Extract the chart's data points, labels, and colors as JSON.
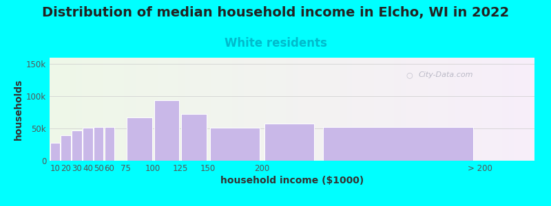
{
  "title": "Distribution of median household income in Elcho, WI in 2022",
  "subtitle": "White residents",
  "xlabel": "household income ($1000)",
  "ylabel": "households",
  "background_color": "#00FFFF",
  "bar_color": "#c9b8e8",
  "bar_edge_color": "#ffffff",
  "bar_centers": [
    10,
    20,
    30,
    40,
    50,
    60,
    87.5,
    112.5,
    137.5,
    175,
    225,
    325
  ],
  "bar_widths": [
    10,
    10,
    10,
    10,
    10,
    10,
    25,
    25,
    25,
    50,
    50,
    150
  ],
  "values": [
    28000,
    40000,
    47000,
    51000,
    52000,
    52000,
    67000,
    94000,
    73000,
    51000,
    58000,
    52000
  ],
  "xtick_positions": [
    10,
    20,
    30,
    40,
    50,
    60,
    75,
    100,
    125,
    150,
    200,
    400
  ],
  "xtick_labels": [
    "10",
    "20",
    "30",
    "40",
    "50",
    "60",
    "75",
    "100",
    "125",
    "150",
    "200",
    "> 200"
  ],
  "xlim": [
    5,
    450
  ],
  "ylim": [
    0,
    160000
  ],
  "yticks": [
    0,
    50000,
    100000,
    150000
  ],
  "ytick_labels": [
    "0",
    "50k",
    "100k",
    "150k"
  ],
  "title_fontsize": 14,
  "subtitle_fontsize": 12,
  "subtitle_color": "#00BBCC",
  "axis_label_fontsize": 10,
  "watermark_text": "City-Data.com",
  "watermark_color": "#b0b0be",
  "title_color": "#222222"
}
